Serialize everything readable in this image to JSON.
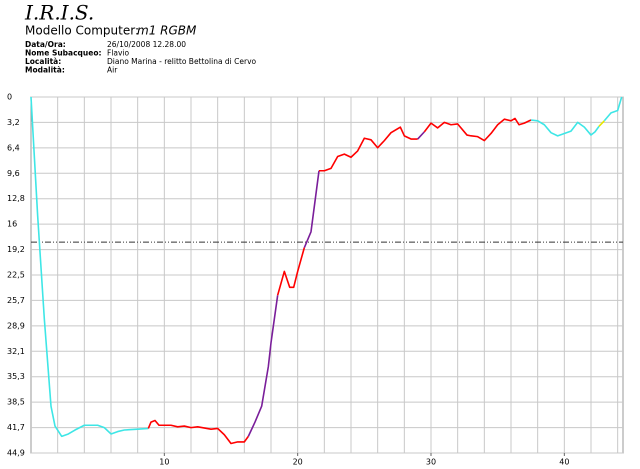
{
  "header": {
    "title": "I.R.I.S.",
    "model_label": "Modello Computer:",
    "model": "m1 RGBM",
    "fields": [
      {
        "label": "Data/Ora:",
        "value": "26/10/2008 12.28.00"
      },
      {
        "label": "Nome Subacqueo:",
        "value": "Flavio"
      },
      {
        "label": "Località:",
        "value": "Diano Marina - relitto Bettolina di Cervo"
      },
      {
        "label": "Modalità:",
        "value": "Air"
      }
    ]
  },
  "chart_data": {
    "type": "line",
    "x": [
      0,
      0.5,
      1,
      1.5,
      1.8,
      2.3,
      2.8,
      3.3,
      4,
      5,
      5.5,
      6,
      6.5,
      7,
      8,
      8.8,
      9,
      9.3,
      9.6,
      10.5,
      11,
      11.5,
      12,
      12.5,
      13.5,
      14,
      14.5,
      15,
      15.5,
      16,
      16.3,
      16.8,
      17.3,
      17.8,
      18,
      18.5,
      19,
      19.4,
      19.7,
      20,
      20.5,
      21,
      21.6,
      22,
      22.5,
      23,
      23.5,
      24,
      24.5,
      25,
      25.5,
      26,
      26.5,
      27,
      27.7,
      28,
      28.5,
      29,
      29.5,
      30,
      30.5,
      31,
      31.5,
      32,
      32.7,
      33,
      33.5,
      34,
      34.5,
      35,
      35.5,
      36,
      36.3,
      36.6,
      37,
      37.5,
      38,
      38.5,
      39,
      39.5,
      40,
      40.5,
      41,
      41.5,
      42,
      42.3,
      42.6,
      43,
      43.5,
      44,
      44.3
    ],
    "values": [
      0,
      15,
      28,
      39,
      41.5,
      42.8,
      42.5,
      42,
      41.4,
      41.4,
      41.7,
      42.5,
      42.2,
      42,
      41.9,
      41.8,
      41,
      40.8,
      41.4,
      41.4,
      41.6,
      41.5,
      41.7,
      41.6,
      41.9,
      41.8,
      42.6,
      43.7,
      43.5,
      43.5,
      42.8,
      41,
      39,
      34,
      31,
      25,
      22,
      24,
      24,
      22,
      19,
      17,
      9.3,
      9.3,
      9,
      7.5,
      7.2,
      7.6,
      6.8,
      5.2,
      5.4,
      6.4,
      5.5,
      4.5,
      3.8,
      4.9,
      5.3,
      5.3,
      4.4,
      3.3,
      3.9,
      3.2,
      3.5,
      3.4,
      4.8,
      4.9,
      5,
      5.5,
      4.6,
      3.5,
      2.8,
      3,
      2.7,
      3.5,
      3.3,
      2.9,
      3,
      3.5,
      4.5,
      4.9,
      4.6,
      4.3,
      3.2,
      3.8,
      4.8,
      4.4,
      3.7,
      3,
      2,
      1.7,
      0
    ],
    "colors": [
      "#3ee6e6",
      "#3ee6e6",
      "#3ee6e6",
      "#3ee6e6",
      "#3ee6e6",
      "#3ee6e6",
      "#3ee6e6",
      "#3ee6e6",
      "#3ee6e6",
      "#3ee6e6",
      "#3ee6e6",
      "#3ee6e6",
      "#3ee6e6",
      "#3ee6e6",
      "#3ee6e6",
      "#ff0000",
      "#ff0000",
      "#ff0000",
      "#ff0000",
      "#ff0000",
      "#ff0000",
      "#ff0000",
      "#ff0000",
      "#ff0000",
      "#ff0000",
      "#ff0000",
      "#ff0000",
      "#ff0000",
      "#ff0000",
      "#ff0000",
      "#7a1e9a",
      "#7a1e9a",
      "#7a1e9a",
      "#7a1e9a",
      "#7a1e9a",
      "#ff0000",
      "#ff0000",
      "#ff0000",
      "#ff0000",
      "#ff0000",
      "#7a1e9a",
      "#7a1e9a",
      "#ff0000",
      "#ff0000",
      "#ff0000",
      "#ff0000",
      "#ff0000",
      "#ff0000",
      "#ff0000",
      "#ff0000",
      "#ff0000",
      "#ff0000",
      "#ff0000",
      "#ff0000",
      "#ff0000",
      "#ff0000",
      "#ff0000",
      "#7a1e9a",
      "#ff0000",
      "#ff0000",
      "#ff0000",
      "#ff0000",
      "#ff0000",
      "#ff0000",
      "#ff0000",
      "#ff0000",
      "#ff0000",
      "#ff0000",
      "#ff0000",
      "#ff0000",
      "#ff0000",
      "#ff0000",
      "#ff0000",
      "#ff0000",
      "#ff0000",
      "#3ee6e6",
      "#3ee6e6",
      "#3ee6e6",
      "#3ee6e6",
      "#3ee6e6",
      "#3ee6e6",
      "#3ee6e6",
      "#3ee6e6",
      "#3ee6e6",
      "#3ee6e6",
      "#3ee6e6",
      "#e6e600",
      "#3ee6e6",
      "#3ee6e6",
      "#3ee6e6",
      "#3ee6e6"
    ],
    "xlim": [
      0,
      44.4
    ],
    "xticks": [
      10,
      20,
      30,
      40
    ],
    "xgrid": [
      2,
      4,
      6,
      8,
      10,
      12,
      14,
      16,
      18,
      20,
      22,
      24,
      26,
      28,
      30,
      32,
      34,
      36,
      38,
      40,
      42,
      44
    ],
    "ylim": [
      0,
      44.9
    ],
    "y_inverted": true,
    "yticks": [
      0,
      {
        "value": 3.207,
        "label": "3,2"
      },
      {
        "value": 6.414,
        "label": "6,4"
      },
      {
        "value": 9.621,
        "label": "9,6"
      },
      {
        "value": 12.829,
        "label": "12,8"
      },
      {
        "value": 16.036,
        "label": "16"
      },
      {
        "value": 19.243,
        "label": "19,2"
      },
      {
        "value": 22.45,
        "label": "22,5"
      },
      {
        "value": 25.657,
        "label": "25,7"
      },
      {
        "value": 28.864,
        "label": "28,9"
      },
      {
        "value": 32.071,
        "label": "32,1"
      },
      {
        "value": 35.279,
        "label": "35,3"
      },
      {
        "value": 38.486,
        "label": "38,5"
      },
      {
        "value": 41.693,
        "label": "41,7"
      },
      {
        "value": 44.9,
        "label": "44,9"
      }
    ],
    "reference_line": 18.3,
    "grid": true
  }
}
